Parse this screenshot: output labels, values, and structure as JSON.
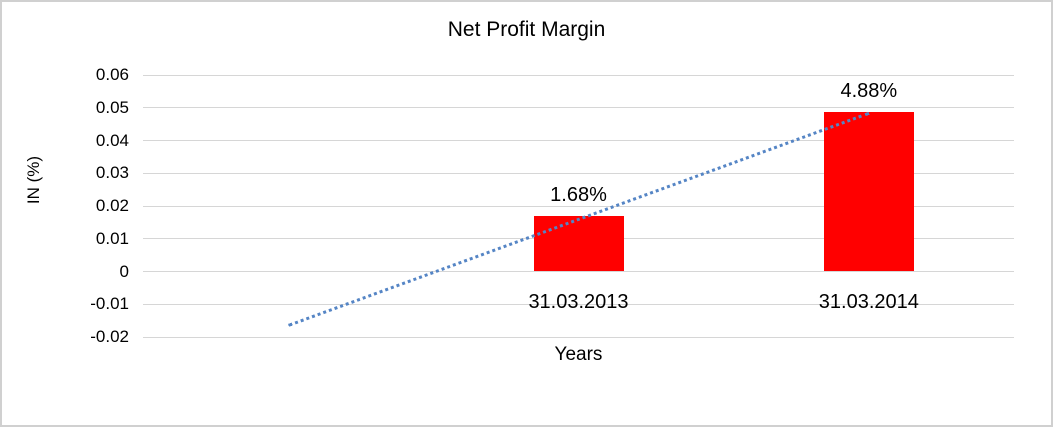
{
  "chart_data": {
    "type": "bar",
    "title": "Net Profit Margin",
    "xlabel": "Years",
    "ylabel": "IN (%)",
    "categories": [
      "31.03.2013",
      "31.03.2014"
    ],
    "values": [
      0.0168,
      0.0488
    ],
    "data_labels": [
      "1.68%",
      "4.88%"
    ],
    "ylim": [
      -0.02,
      0.06
    ],
    "ytick_labels": [
      "0.06",
      "0.05",
      "0.04",
      "0.03",
      "0.02",
      "0.01",
      "0",
      "-0.01",
      "-0.02"
    ],
    "grid": true,
    "legend": false,
    "bar_color": "#FF0000",
    "layout_hints": {
      "category_slots": 3,
      "first_bar_slot": 1,
      "legend_position": "none"
    },
    "trendline": {
      "type": "linear",
      "style": "dotted",
      "color": "#5585C5",
      "start_slot": 0,
      "start_value": -0.016,
      "end_slot": 2,
      "end_value": 0.0488
    }
  },
  "colors": {
    "gridline": "#D6D6D6",
    "frame_border": "#D0D0D0",
    "text": "#000000",
    "background": "#FFFFFF"
  }
}
